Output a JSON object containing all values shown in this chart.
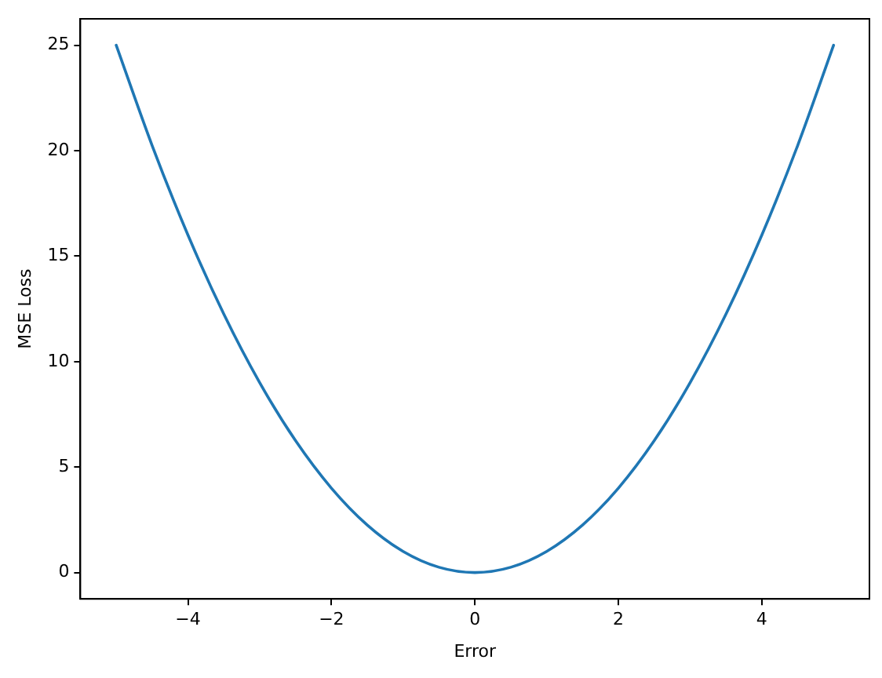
{
  "chart_data": {
    "type": "line",
    "xlabel": "Error",
    "ylabel": "MSE Loss",
    "x": [
      -5,
      -4.5,
      -4,
      -3.5,
      -3,
      -2.5,
      -2,
      -1.5,
      -1,
      -0.5,
      0,
      0.5,
      1,
      1.5,
      2,
      2.5,
      3,
      3.5,
      4,
      4.5,
      5
    ],
    "series": [
      {
        "color": "#1f77b4",
        "values": [
          25,
          20.25,
          16,
          12.25,
          9,
          6.25,
          4,
          2.25,
          1,
          0.25,
          0,
          0.25,
          1,
          2.25,
          4,
          6.25,
          9,
          12.25,
          16,
          20.25,
          25
        ]
      }
    ],
    "xlim": [
      -5.5,
      5.5
    ],
    "xticks": [
      {
        "value": -4,
        "label": "−4"
      },
      {
        "value": -2,
        "label": "−2"
      },
      0,
      2,
      4
    ],
    "ylim": [
      -1.25,
      26.25
    ],
    "yticks": [
      0,
      5,
      10,
      15,
      20,
      25
    ],
    "grid": false,
    "legend": false,
    "marker": "none",
    "line_style": "solid"
  }
}
